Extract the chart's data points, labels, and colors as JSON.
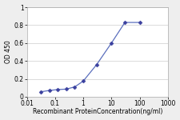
{
  "x": [
    0.031,
    0.063,
    0.125,
    0.25,
    0.5,
    1.0,
    3.0,
    10.0,
    30.0,
    100.0
  ],
  "y": [
    0.055,
    0.07,
    0.08,
    0.085,
    0.11,
    0.175,
    0.36,
    0.6,
    0.83,
    0.83
  ],
  "xlim": [
    0.01,
    1000
  ],
  "ylim": [
    0,
    1
  ],
  "yticks": [
    0,
    0.2,
    0.4,
    0.6,
    0.8,
    1.0
  ],
  "ytick_labels": [
    "0",
    "0.2",
    "0.4",
    "0.6",
    "0.8",
    "1"
  ],
  "xticks": [
    0.01,
    0.1,
    1,
    10,
    100,
    1000
  ],
  "xtick_labels": [
    "0.01",
    "0.1",
    "1",
    "10",
    "100",
    "1000"
  ],
  "xlabel": "Recombinant ProteinConcentration(ng/ml)",
  "ylabel": "OD 450",
  "line_color": "#5b6fbd",
  "marker": "D",
  "marker_color": "#3a3f9e",
  "marker_size": 2.5,
  "bg_color": "#eeeeee",
  "plot_bg": "#ffffff",
  "grid_color": "#cccccc",
  "label_fontsize": 5.5,
  "tick_fontsize": 5.5
}
